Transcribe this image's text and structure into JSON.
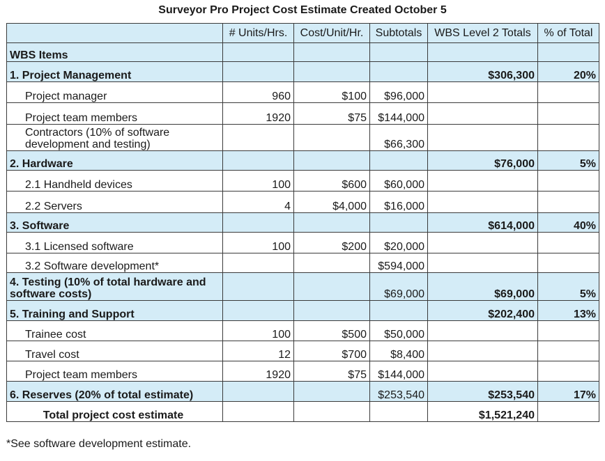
{
  "title": "Surveyor Pro Project Cost Estimate Created October 5",
  "headers": [
    "",
    "# Units/Hrs.",
    "Cost/Unit/Hr.",
    "Subtotals",
    "WBS Level 2 Totals",
    "% of Total"
  ],
  "rows": [
    {
      "kind": "group",
      "cells": [
        "WBS Items",
        "",
        "",
        "",
        "",
        ""
      ]
    },
    {
      "kind": "group",
      "cells": [
        "1. Project Management",
        "",
        "",
        "",
        "$306,300",
        "20%"
      ]
    },
    {
      "kind": "detail",
      "cells": [
        "Project manager",
        "960",
        "$100",
        "$96,000",
        "",
        ""
      ]
    },
    {
      "kind": "detail",
      "cells": [
        "Project team members",
        "1920",
        "$75",
        "$144,000",
        "",
        ""
      ]
    },
    {
      "kind": "detail",
      "cells": [
        "Contractors (10% of software development and testing)",
        "",
        "",
        "$66,300",
        "",
        ""
      ]
    },
    {
      "kind": "group",
      "cells": [
        "2. Hardware",
        "",
        "",
        "",
        "$76,000",
        "5%"
      ]
    },
    {
      "kind": "detail",
      "cells": [
        "2.1  Handheld devices",
        "100",
        "$600",
        "$60,000",
        "",
        ""
      ]
    },
    {
      "kind": "detail",
      "cells": [
        "2.2  Servers",
        "4",
        "$4,000",
        "$16,000",
        "",
        ""
      ]
    },
    {
      "kind": "group",
      "cells": [
        "3. Software",
        "",
        "",
        "",
        "$614,000",
        "40%"
      ]
    },
    {
      "kind": "detail",
      "cells": [
        "3.1 Licensed software",
        "100",
        "$200",
        "$20,000",
        "",
        ""
      ]
    },
    {
      "kind": "detail",
      "cells": [
        "3.2 Software development*",
        "",
        "",
        "$594,000",
        "",
        ""
      ]
    },
    {
      "kind": "group",
      "cells": [
        "4. Testing (10% of total hardware and software costs)",
        "",
        "",
        "$69,000",
        "$69,000",
        "5%"
      ]
    },
    {
      "kind": "group",
      "cells": [
        "5. Training and Support",
        "",
        "",
        "",
        "$202,400",
        "13%"
      ]
    },
    {
      "kind": "detail",
      "cells": [
        "Trainee cost",
        "100",
        "$500",
        "$50,000",
        "",
        ""
      ]
    },
    {
      "kind": "detail",
      "cells": [
        "Travel cost",
        "12",
        "$700",
        "$8,400",
        "",
        ""
      ]
    },
    {
      "kind": "detail",
      "cells": [
        "Project team members",
        "1920",
        "$75",
        "$144,000",
        "",
        ""
      ]
    },
    {
      "kind": "group",
      "cells": [
        "6. Reserves (20% of total estimate)",
        "",
        "",
        "$253,540",
        "$253,540",
        "17%"
      ]
    },
    {
      "kind": "total",
      "cells": [
        "Total project cost estimate",
        "",
        "",
        "",
        "$1,521,240",
        ""
      ]
    }
  ],
  "footnote": "*See software development estimate."
}
